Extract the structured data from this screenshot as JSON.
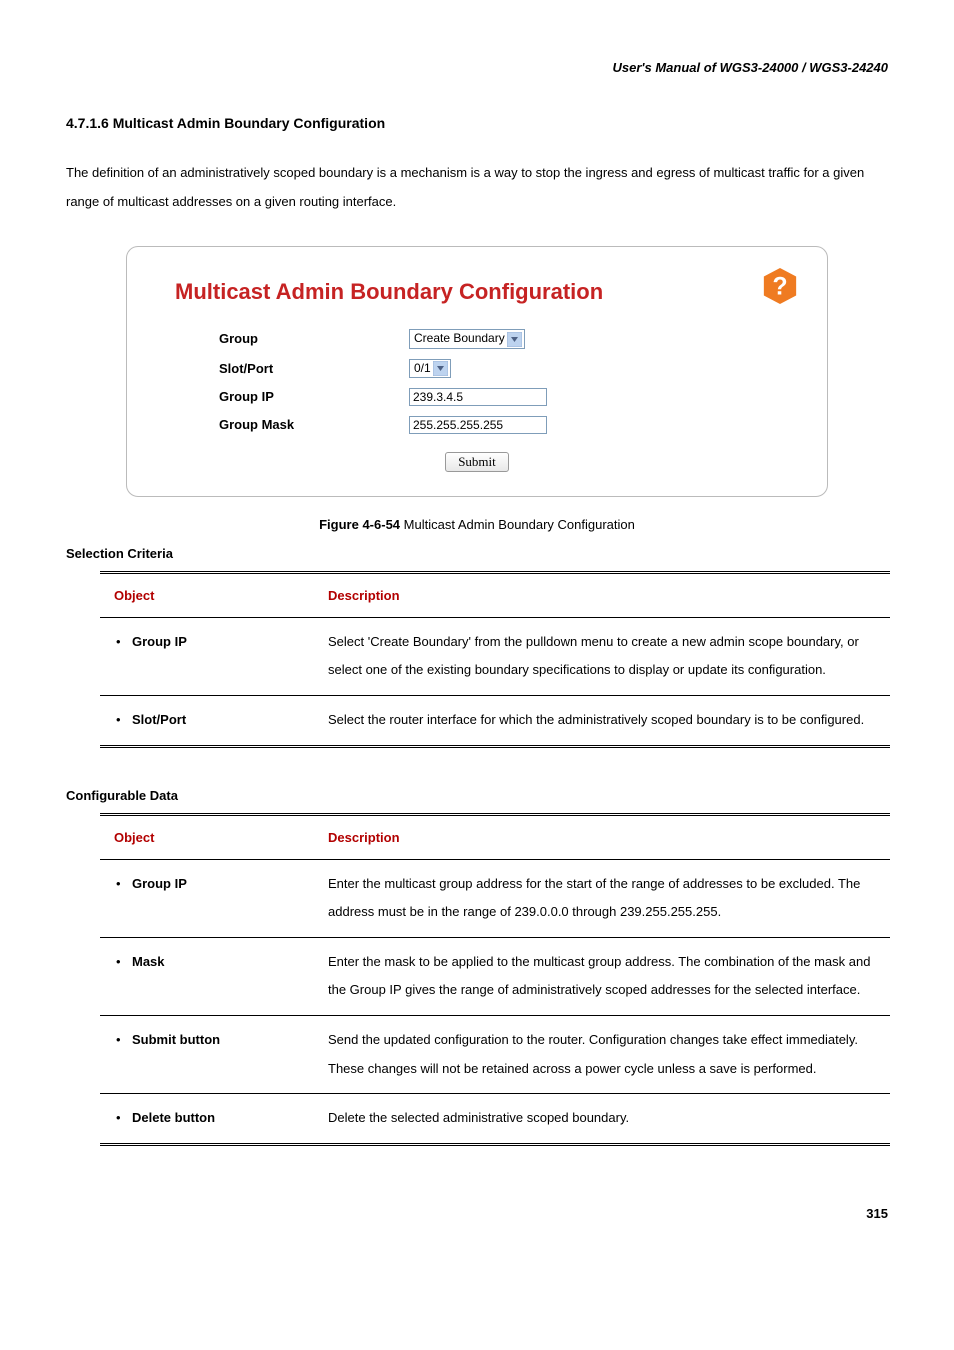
{
  "header": "User's  Manual  of  WGS3-24000  /  WGS3-24240",
  "section_heading": "4.7.1.6 Multicast Admin Boundary Configuration",
  "intro": "The definition of an administratively scoped boundary is a mechanism is a way to stop the ingress and egress of multicast traffic for a given range of multicast addresses on a given routing interface.",
  "screenshot": {
    "title": "Multicast Admin Boundary Configuration",
    "help_icon_bg": "#ef7b21",
    "help_icon_fg": "#ffffff",
    "dropdown_arrow_bg": "#bdd3ef",
    "dropdown_arrow_fg": "#4d6185",
    "rows": [
      {
        "label": "Group",
        "type": "select",
        "value": "Create Boundary"
      },
      {
        "label": "Slot/Port",
        "type": "select",
        "value": "0/1"
      },
      {
        "label": "Group IP",
        "type": "input",
        "value": "239.3.4.5"
      },
      {
        "label": "Group Mask",
        "type": "input",
        "value": "255.255.255.255"
      }
    ],
    "submit_label": "Submit"
  },
  "figure_caption_bold": "Figure 4-6-54",
  "figure_caption_rest": " Multicast Admin Boundary Configuration",
  "selection_heading": "Selection Criteria",
  "table_headers": {
    "object": "Object",
    "description": "Description"
  },
  "selection_rows": [
    {
      "object": "Group IP",
      "description": "Select 'Create Boundary' from the pulldown menu to create a new admin scope boundary, or select one of the existing boundary specifications to display or update its configuration."
    },
    {
      "object": "Slot/Port",
      "description": "Select the router interface for which the administratively scoped boundary is to be configured."
    }
  ],
  "configurable_heading": "Configurable Data",
  "configurable_rows": [
    {
      "object": "Group IP",
      "description": "Enter the multicast group address for the start of the range of addresses to be excluded. The address must be in the range of 239.0.0.0 through 239.255.255.255."
    },
    {
      "object": "Mask",
      "description": "Enter the mask to be applied to the multicast group address. The combination of the mask and the Group IP gives the range of administratively scoped addresses for the selected interface."
    },
    {
      "object": "Submit button",
      "description": "Send the updated configuration to the router. Configuration changes take effect immediately. These changes will not be retained across a power cycle unless a save is performed."
    },
    {
      "object": "Delete button",
      "description": "Delete the selected administrative scoped boundary."
    }
  ],
  "page_number": "315"
}
